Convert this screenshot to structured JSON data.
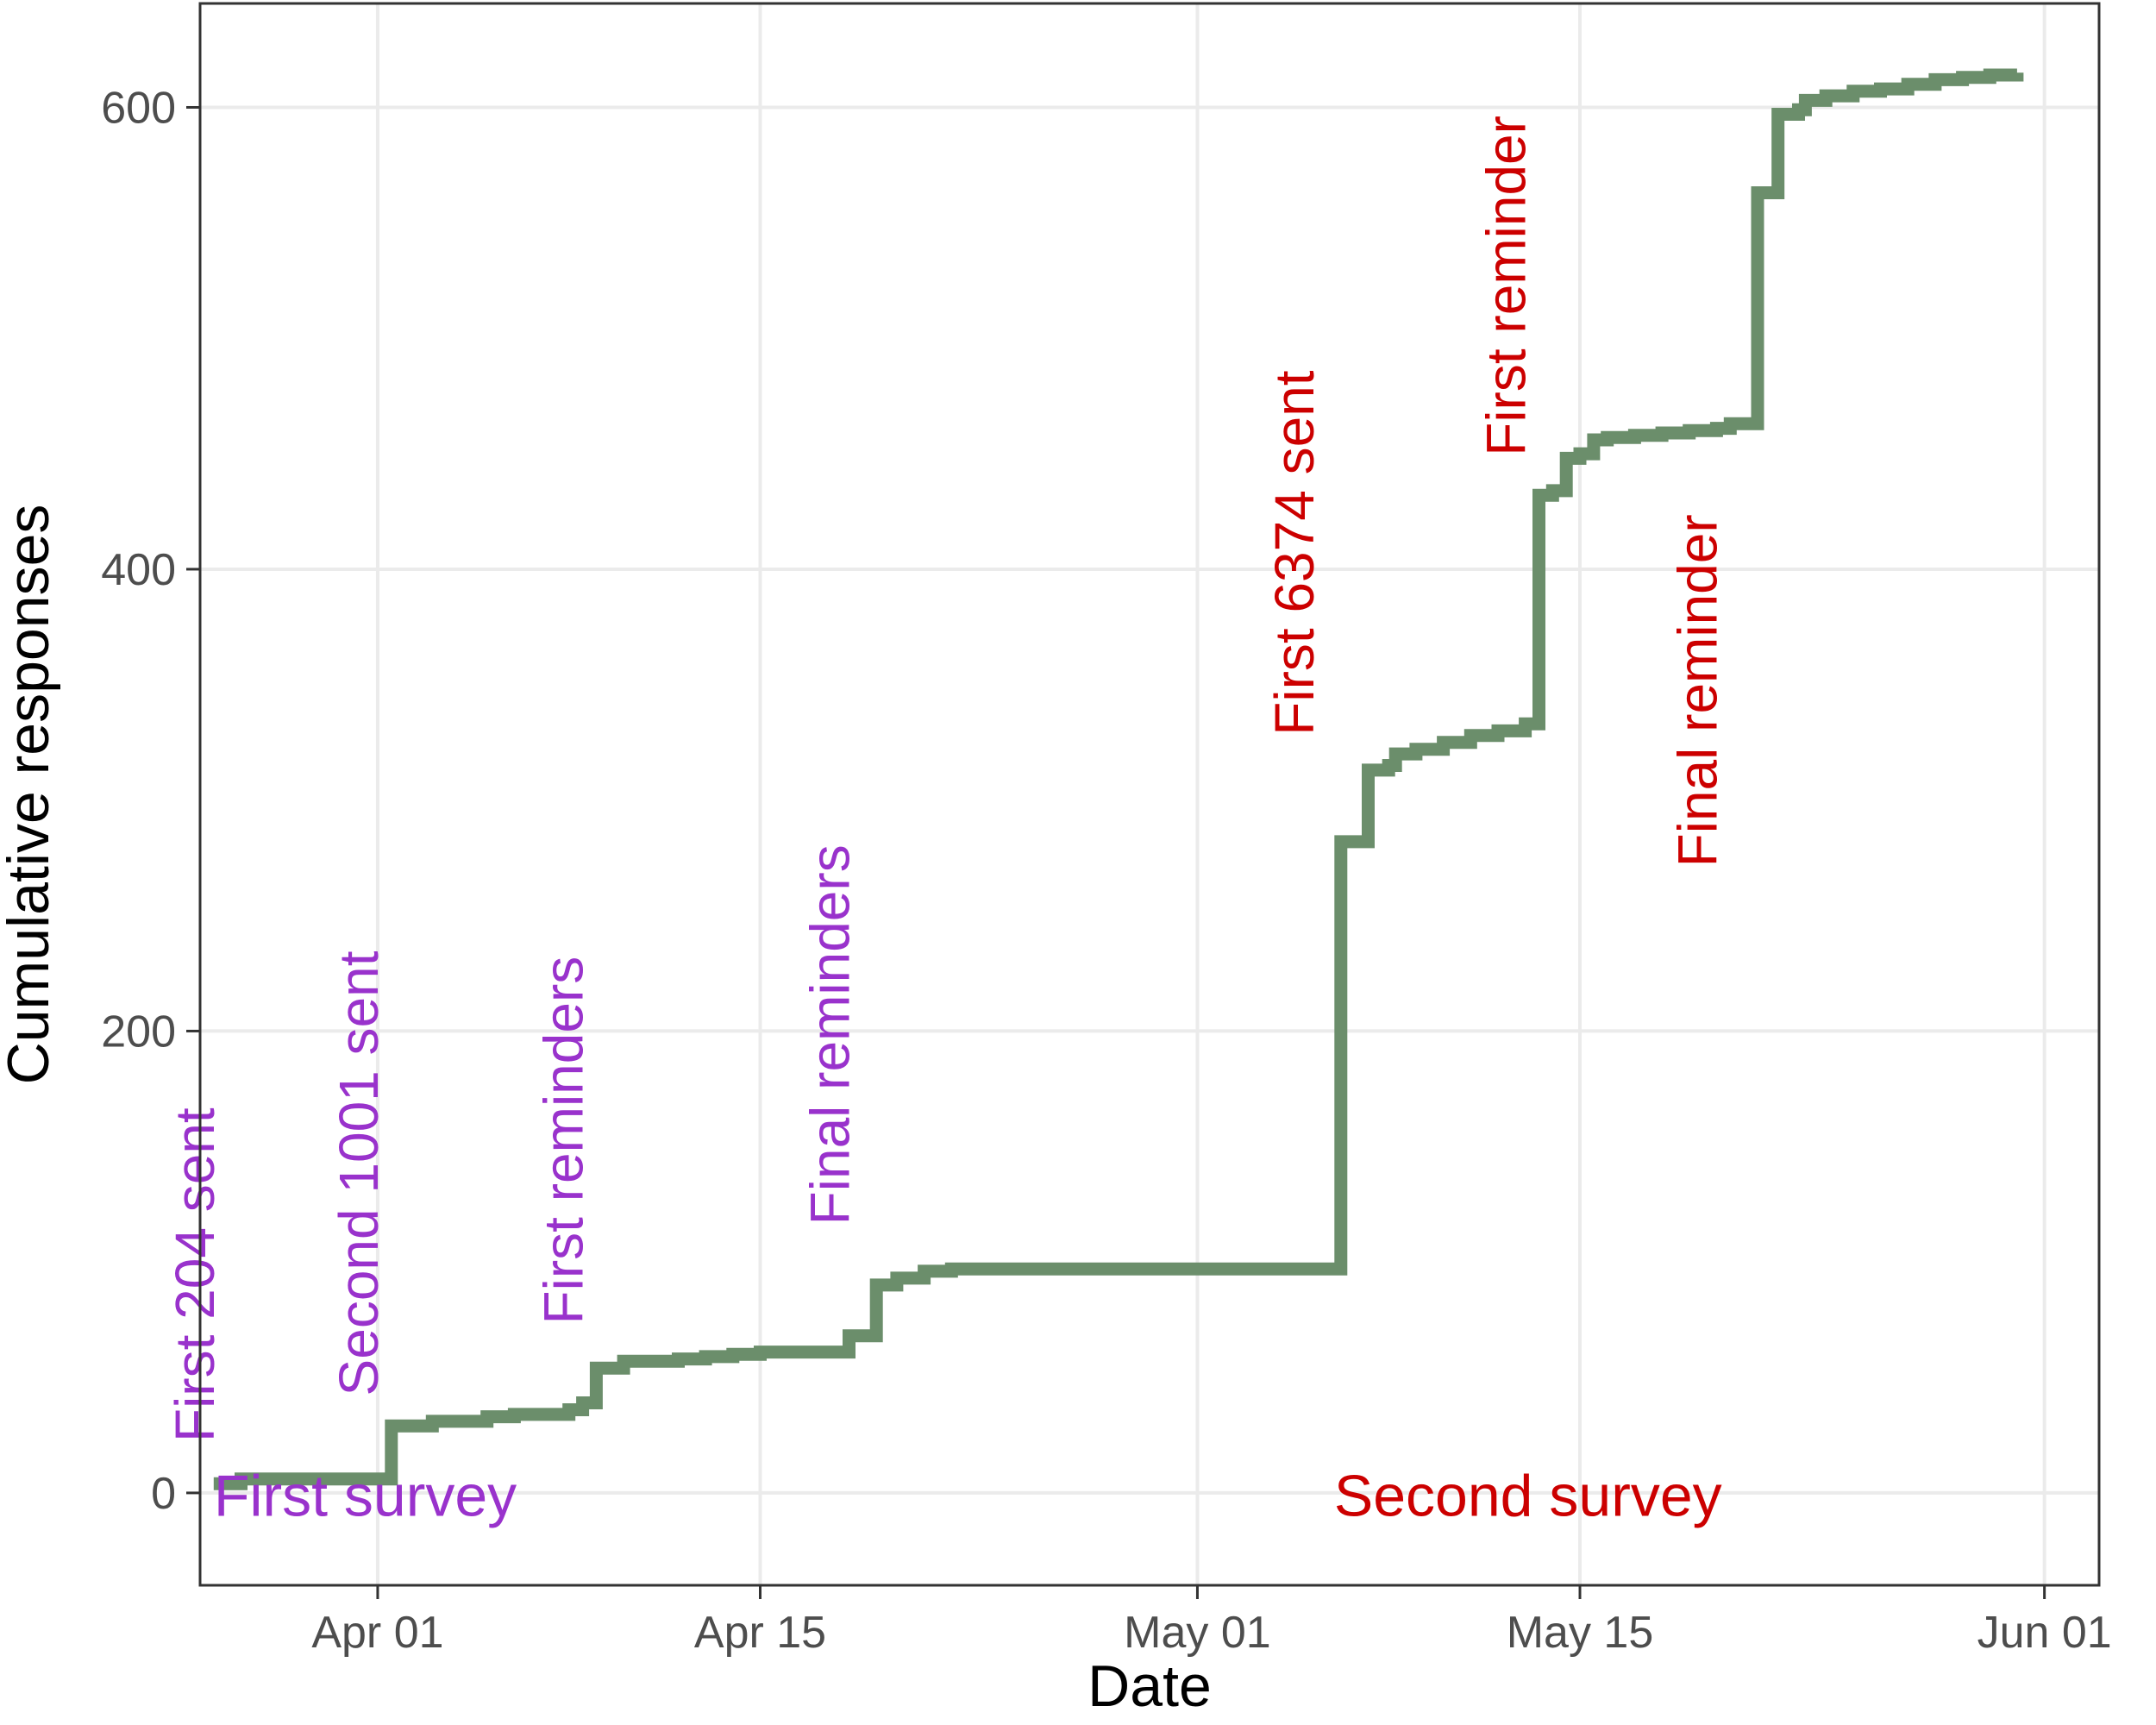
{
  "chart_data": {
    "type": "line",
    "step": true,
    "xlabel": "Date",
    "ylabel": "Cumulative responses",
    "x_ticks": [
      {
        "date": "2021-04-01",
        "label": "Apr 01"
      },
      {
        "date": "2021-04-15",
        "label": "Apr 15"
      },
      {
        "date": "2021-05-01",
        "label": "May 01"
      },
      {
        "date": "2021-05-15",
        "label": "May 15"
      },
      {
        "date": "2021-06-01",
        "label": "Jun 01"
      }
    ],
    "y_ticks": [
      0,
      200,
      400,
      600
    ],
    "xlim": [
      "2021-03-25T12:00",
      "2021-06-03T00:00"
    ],
    "ylim": [
      -40,
      645
    ],
    "grid": true,
    "series": [
      {
        "color": "#6b8e6b",
        "points": [
          [
            "2021-03-26",
            4
          ],
          [
            "2021-03-27",
            6
          ],
          [
            "2021-04-01",
            6
          ],
          [
            "2021-04-01T12:00",
            29
          ],
          [
            "2021-04-03",
            31
          ],
          [
            "2021-04-05",
            33
          ],
          [
            "2021-04-06",
            34
          ],
          [
            "2021-04-08",
            36
          ],
          [
            "2021-04-08T12:00",
            39
          ],
          [
            "2021-04-09",
            54
          ],
          [
            "2021-04-10",
            57
          ],
          [
            "2021-04-12",
            58
          ],
          [
            "2021-04-13",
            59
          ],
          [
            "2021-04-14",
            60
          ],
          [
            "2021-04-15",
            61
          ],
          [
            "2021-04-18",
            61
          ],
          [
            "2021-04-18T06:00",
            68
          ],
          [
            "2021-04-19",
            68
          ],
          [
            "2021-04-19T06:00",
            90
          ],
          [
            "2021-04-20",
            93
          ],
          [
            "2021-04-21",
            96
          ],
          [
            "2021-04-22",
            97
          ],
          [
            "2021-05-06",
            97
          ],
          [
            "2021-05-06T06:00",
            282
          ],
          [
            "2021-05-07",
            282
          ],
          [
            "2021-05-07T06:00",
            313
          ],
          [
            "2021-05-08",
            315
          ],
          [
            "2021-05-08T06:00",
            320
          ],
          [
            "2021-05-09",
            322
          ],
          [
            "2021-05-10",
            325
          ],
          [
            "2021-05-11",
            328
          ],
          [
            "2021-05-12",
            330
          ],
          [
            "2021-05-13",
            333
          ],
          [
            "2021-05-13T12:00",
            432
          ],
          [
            "2021-05-14",
            434
          ],
          [
            "2021-05-14T12:00",
            448
          ],
          [
            "2021-05-15",
            450
          ],
          [
            "2021-05-15T12:00",
            456
          ],
          [
            "2021-05-16",
            457
          ],
          [
            "2021-05-17",
            458
          ],
          [
            "2021-05-18",
            459
          ],
          [
            "2021-05-19",
            460
          ],
          [
            "2021-05-20",
            461
          ],
          [
            "2021-05-20T12:00",
            463
          ],
          [
            "2021-05-21",
            463
          ],
          [
            "2021-05-21T12:00",
            563
          ],
          [
            "2021-05-22",
            563
          ],
          [
            "2021-05-22T06:00",
            597
          ],
          [
            "2021-05-23",
            599
          ],
          [
            "2021-05-23T06:00",
            603
          ],
          [
            "2021-05-24",
            605
          ],
          [
            "2021-05-25",
            607
          ],
          [
            "2021-05-26",
            608
          ],
          [
            "2021-05-27",
            610
          ],
          [
            "2021-05-28",
            612
          ],
          [
            "2021-05-29",
            613
          ],
          [
            "2021-05-30",
            614
          ],
          [
            "2021-05-31",
            615
          ]
        ]
      }
    ],
    "annotations": [
      {
        "text": "First 204 sent",
        "date": "2021-03-26",
        "y": 22,
        "color": "#9932cc",
        "rotation": -90
      },
      {
        "text": "Second 1001 sent",
        "date": "2021-04-01",
        "y": 42,
        "color": "#9932cc",
        "rotation": -90
      },
      {
        "text": "First reminders",
        "date": "2021-04-08T12:00",
        "y": 73,
        "color": "#9932cc",
        "rotation": -90
      },
      {
        "text": "Final reminders",
        "date": "2021-04-18T06:00",
        "y": 116,
        "color": "#9932cc",
        "rotation": -90
      },
      {
        "text": "First 6374 sent",
        "date": "2021-05-05T06:00",
        "y": 328,
        "color": "#cc0000",
        "rotation": -90
      },
      {
        "text": "First reminder",
        "date": "2021-05-13",
        "y": 449,
        "color": "#cc0000",
        "rotation": -90
      },
      {
        "text": "Final reminder",
        "date": "2021-05-20",
        "y": 271,
        "color": "#cc0000",
        "rotation": -90
      },
      {
        "text": "First survey",
        "date": "2021-03-26",
        "y": -10,
        "color": "#9932cc",
        "rotation": 0
      },
      {
        "text": "Second survey",
        "date": "2021-05-06",
        "y": -10,
        "color": "#cc0000",
        "rotation": 0
      }
    ]
  }
}
